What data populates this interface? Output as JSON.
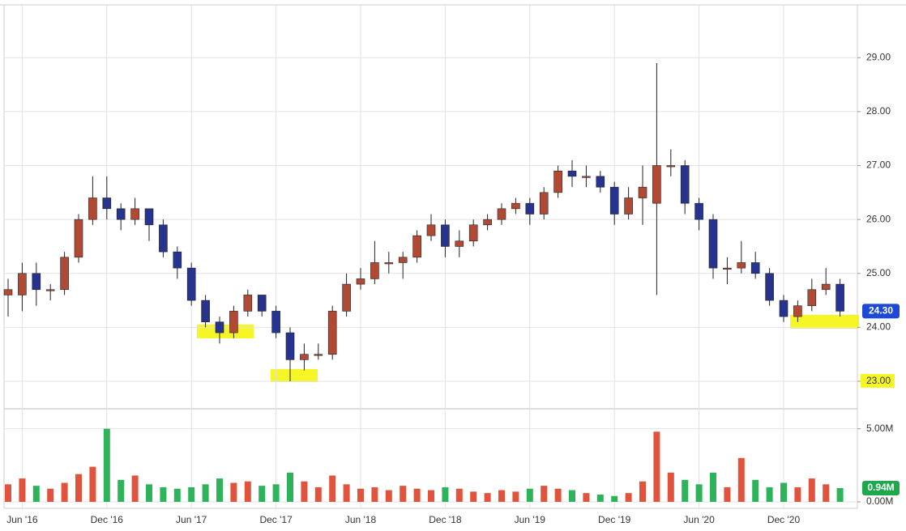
{
  "chart_data": [
    {
      "type": "candlestick",
      "categories": [
        null,
        "Jun '16",
        null,
        null,
        null,
        null,
        null,
        "Dec '16",
        null,
        null,
        null,
        null,
        null,
        "Jun '17",
        null,
        null,
        null,
        null,
        null,
        "Dec '17",
        null,
        null,
        null,
        null,
        null,
        "Jun '18",
        null,
        null,
        null,
        null,
        null,
        "Dec '18",
        null,
        null,
        null,
        null,
        null,
        "Jun '19",
        null,
        null,
        null,
        null,
        null,
        "Dec '19",
        null,
        null,
        null,
        null,
        null,
        "Jun '20",
        null,
        null,
        null,
        null,
        null,
        "Dec '20",
        null,
        null,
        null,
        null
      ],
      "open": [
        24.6,
        24.6,
        25.0,
        24.7,
        24.7,
        25.3,
        26.0,
        26.4,
        26.2,
        26.0,
        26.2,
        25.9,
        25.4,
        25.1,
        24.5,
        24.1,
        23.9,
        24.3,
        24.6,
        24.3,
        23.9,
        23.4,
        23.5,
        23.5,
        24.3,
        24.8,
        24.9,
        25.2,
        25.2,
        25.3,
        25.7,
        25.9,
        25.5,
        25.6,
        25.9,
        26.0,
        26.2,
        26.3,
        26.1,
        26.5,
        26.9,
        26.8,
        26.8,
        26.6,
        26.1,
        26.4,
        26.3,
        27.0,
        27.0,
        26.3,
        26.0,
        25.1,
        25.1,
        25.2,
        25.0,
        24.5,
        24.2,
        24.4,
        24.7,
        24.8
      ],
      "high": [
        24.9,
        25.2,
        25.2,
        24.8,
        25.4,
        26.1,
        26.8,
        26.8,
        26.3,
        26.4,
        26.2,
        26.0,
        25.5,
        25.2,
        24.6,
        24.2,
        24.4,
        24.7,
        24.6,
        24.4,
        24.0,
        23.7,
        23.7,
        24.4,
        25.0,
        25.1,
        25.6,
        25.4,
        25.4,
        25.8,
        26.1,
        26.0,
        25.8,
        26.0,
        26.1,
        26.3,
        26.4,
        26.4,
        26.6,
        27.0,
        27.1,
        27.0,
        26.9,
        26.7,
        26.6,
        27.0,
        28.9,
        27.3,
        27.1,
        26.4,
        26.1,
        25.3,
        25.6,
        25.4,
        25.1,
        24.6,
        24.5,
        24.9,
        25.1,
        24.9
      ],
      "low": [
        24.2,
        24.3,
        24.4,
        24.5,
        24.6,
        25.2,
        25.9,
        26.0,
        25.8,
        25.9,
        25.6,
        25.3,
        24.9,
        24.4,
        24.0,
        23.7,
        23.8,
        24.2,
        24.2,
        23.8,
        23.0,
        23.2,
        23.4,
        23.4,
        24.2,
        24.7,
        24.8,
        25.0,
        24.9,
        25.2,
        25.6,
        25.3,
        25.3,
        25.5,
        25.8,
        25.9,
        26.1,
        25.9,
        26.0,
        26.4,
        26.6,
        26.6,
        26.5,
        25.9,
        26.0,
        25.9,
        24.6,
        26.8,
        26.1,
        25.8,
        24.9,
        24.8,
        25.0,
        24.9,
        24.4,
        24.1,
        24.1,
        24.3,
        24.6,
        24.2
      ],
      "close": [
        24.7,
        25.0,
        24.7,
        24.7,
        25.3,
        26.0,
        26.4,
        26.2,
        26.0,
        26.2,
        25.9,
        25.4,
        25.1,
        24.5,
        24.1,
        23.9,
        24.3,
        24.6,
        24.3,
        23.9,
        23.4,
        23.5,
        23.5,
        24.3,
        24.8,
        24.9,
        25.2,
        25.2,
        25.3,
        25.7,
        25.9,
        25.5,
        25.6,
        25.9,
        26.0,
        26.2,
        26.3,
        26.1,
        26.5,
        26.9,
        26.8,
        26.8,
        26.6,
        26.1,
        26.4,
        26.6,
        27.0,
        27.0,
        26.3,
        26.0,
        25.1,
        25.1,
        25.2,
        25.0,
        24.5,
        24.2,
        24.4,
        24.7,
        24.8,
        24.3
      ],
      "up_color": "#b04a34",
      "down_color": "#26348f",
      "current": {
        "value": 24.3,
        "label": "24.30"
      },
      "ylim": [
        22.52,
        29.92
      ],
      "yticks": [
        {
          "value": 23,
          "label": "23.00"
        },
        {
          "value": 24,
          "label": "24.00"
        },
        {
          "value": 25,
          "label": "25.00"
        },
        {
          "value": 26,
          "label": "26.00"
        },
        {
          "value": 27,
          "label": "27.00"
        },
        {
          "value": 28,
          "label": "28.00"
        },
        {
          "value": 29,
          "label": "29.00"
        }
      ],
      "grid": true
    },
    {
      "type": "bar",
      "values": [
        1.2,
        1.6,
        1.1,
        0.9,
        1.3,
        1.9,
        2.4,
        5.0,
        1.5,
        1.8,
        1.2,
        1.0,
        0.9,
        1.0,
        1.2,
        1.6,
        1.3,
        1.4,
        1.1,
        1.2,
        2.0,
        1.4,
        1.0,
        1.8,
        1.2,
        0.9,
        1.0,
        0.8,
        1.1,
        0.9,
        0.8,
        1.0,
        0.9,
        0.7,
        0.6,
        0.8,
        0.7,
        0.9,
        1.1,
        0.9,
        0.8,
        0.6,
        0.5,
        0.4,
        0.6,
        1.4,
        4.8,
        2.0,
        1.5,
        1.2,
        2.0,
        1.0,
        3.0,
        1.5,
        1.0,
        1.3,
        1.0,
        1.6,
        1.2,
        0.94
      ],
      "up_color": "#e0533c",
      "down_color": "#2eb35a",
      "current": {
        "value": 0.94,
        "label": "0.94M"
      },
      "ylim": [
        0,
        6.2
      ],
      "yticks": [
        {
          "value": 0,
          "label": "0.00M"
        },
        {
          "value": 5,
          "label": "5.00M"
        }
      ]
    }
  ]
}
